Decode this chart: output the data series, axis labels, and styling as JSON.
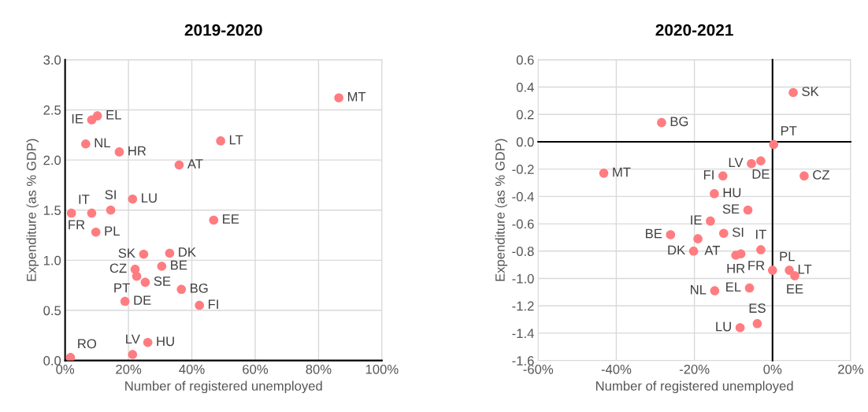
{
  "chart_data": [
    {
      "type": "scatter",
      "title": "2019-2020",
      "xlabel": "Number of registered unemployed",
      "ylabel": "Expenditure (as % GDP)",
      "x": [
        86.4,
        10.2,
        8.4,
        6.5,
        17.1,
        49.1,
        36.0,
        21.3,
        14.4,
        2.0,
        8.4,
        9.7,
        46.9,
        24.8,
        33.0,
        22.1,
        22.6,
        30.5,
        25.3,
        36.7,
        18.9,
        42.4,
        26.1,
        21.3,
        1.7
      ],
      "series": [
        {
          "color": "#ff7c80",
          "values": [
            2.62,
            2.44,
            2.4,
            2.16,
            2.08,
            2.19,
            1.95,
            1.61,
            1.5,
            1.47,
            1.47,
            1.28,
            1.4,
            1.06,
            1.07,
            0.91,
            0.84,
            0.94,
            0.78,
            0.71,
            0.59,
            0.55,
            0.18,
            0.06,
            0.03
          ],
          "value_labels": [
            "MT",
            "EL",
            "IE",
            "NL",
            "HR",
            "LT",
            "AT",
            "LU",
            "SI",
            "IT",
            "FR",
            "PL",
            "EE",
            "SK",
            "DK",
            "CZ",
            "PT",
            "BE",
            "SE",
            "BG",
            "DE",
            "FI",
            "HU",
            "LV",
            "RO"
          ]
        }
      ],
      "xlim": [
        0,
        100
      ],
      "xticks": [
        {
          "value": 0,
          "label": "0%"
        },
        {
          "value": 20,
          "label": "20%"
        },
        {
          "value": 40,
          "label": "40%"
        },
        {
          "value": 60,
          "label": "60%"
        },
        {
          "value": 80,
          "label": "80%"
        },
        {
          "value": 100,
          "label": "100%"
        }
      ],
      "ylim": [
        0,
        3
      ],
      "yticks": [
        {
          "value": 0,
          "label": "0.0"
        },
        {
          "value": 0.5,
          "label": "0.5"
        },
        {
          "value": 1,
          "label": "1.0"
        },
        {
          "value": 1.5,
          "label": "1.5"
        },
        {
          "value": 2,
          "label": "2.0"
        },
        {
          "value": 2.5,
          "label": "2.5"
        },
        {
          "value": 3,
          "label": "3.0"
        }
      ],
      "grid": true,
      "marker": "circle"
    },
    {
      "type": "scatter",
      "title": "2020-2021",
      "xlabel": "Number of registered unemployed",
      "ylabel": "Expenditure (as % GDP)",
      "x": [
        5.3,
        -28.4,
        0.3,
        -43.2,
        -5.4,
        -3.0,
        -12.7,
        8.1,
        -14.9,
        -6.3,
        -15.9,
        -26.1,
        -19.1,
        -12.5,
        -20.2,
        -9.4,
        -8.1,
        -3.0,
        0.0,
        4.3,
        5.7,
        -5.9,
        -14.8,
        -8.3,
        -3.9
      ],
      "series": [
        {
          "color": "#ff7c80",
          "values": [
            0.36,
            0.14,
            -0.02,
            -0.23,
            -0.16,
            -0.14,
            -0.25,
            -0.25,
            -0.38,
            -0.5,
            -0.58,
            -0.68,
            -0.71,
            -0.67,
            -0.8,
            -0.83,
            -0.82,
            -0.79,
            -0.94,
            -0.94,
            -0.98,
            -1.07,
            -1.09,
            -1.36,
            -1.33
          ],
          "value_labels": [
            "SK",
            "BG",
            "PT",
            "MT",
            "LV",
            "DE",
            "FI",
            "CZ",
            "HU",
            "SE",
            "IE",
            "BE",
            "AT",
            "SI",
            "DK",
            "HR",
            "FR",
            "IT",
            "PL",
            "LT",
            "EE",
            "EL",
            "NL",
            "LU",
            "ES"
          ]
        }
      ],
      "xlim": [
        -60,
        20
      ],
      "xticks": [
        {
          "value": -60,
          "label": "-60%"
        },
        {
          "value": -40,
          "label": "-40%"
        },
        {
          "value": -20,
          "label": "-20%"
        },
        {
          "value": 0,
          "label": "0%"
        },
        {
          "value": 20,
          "label": "20%"
        }
      ],
      "ylim": [
        -1.6,
        0.6
      ],
      "yticks": [
        {
          "value": -1.6,
          "label": "-1.6"
        },
        {
          "value": -1.4,
          "label": "-1.4"
        },
        {
          "value": -1.2,
          "label": "-1.2"
        },
        {
          "value": -1,
          "label": "-1.0"
        },
        {
          "value": -0.8,
          "label": "-0.8"
        },
        {
          "value": -0.6,
          "label": "-0.6"
        },
        {
          "value": -0.4,
          "label": "-0.4"
        },
        {
          "value": -0.2,
          "label": "-0.2"
        },
        {
          "value": 0,
          "label": "0.0"
        },
        {
          "value": 0.2,
          "label": "0.2"
        },
        {
          "value": 0.4,
          "label": "0.4"
        },
        {
          "value": 0.6,
          "label": "0.6"
        }
      ],
      "grid": true,
      "marker": "circle"
    }
  ]
}
